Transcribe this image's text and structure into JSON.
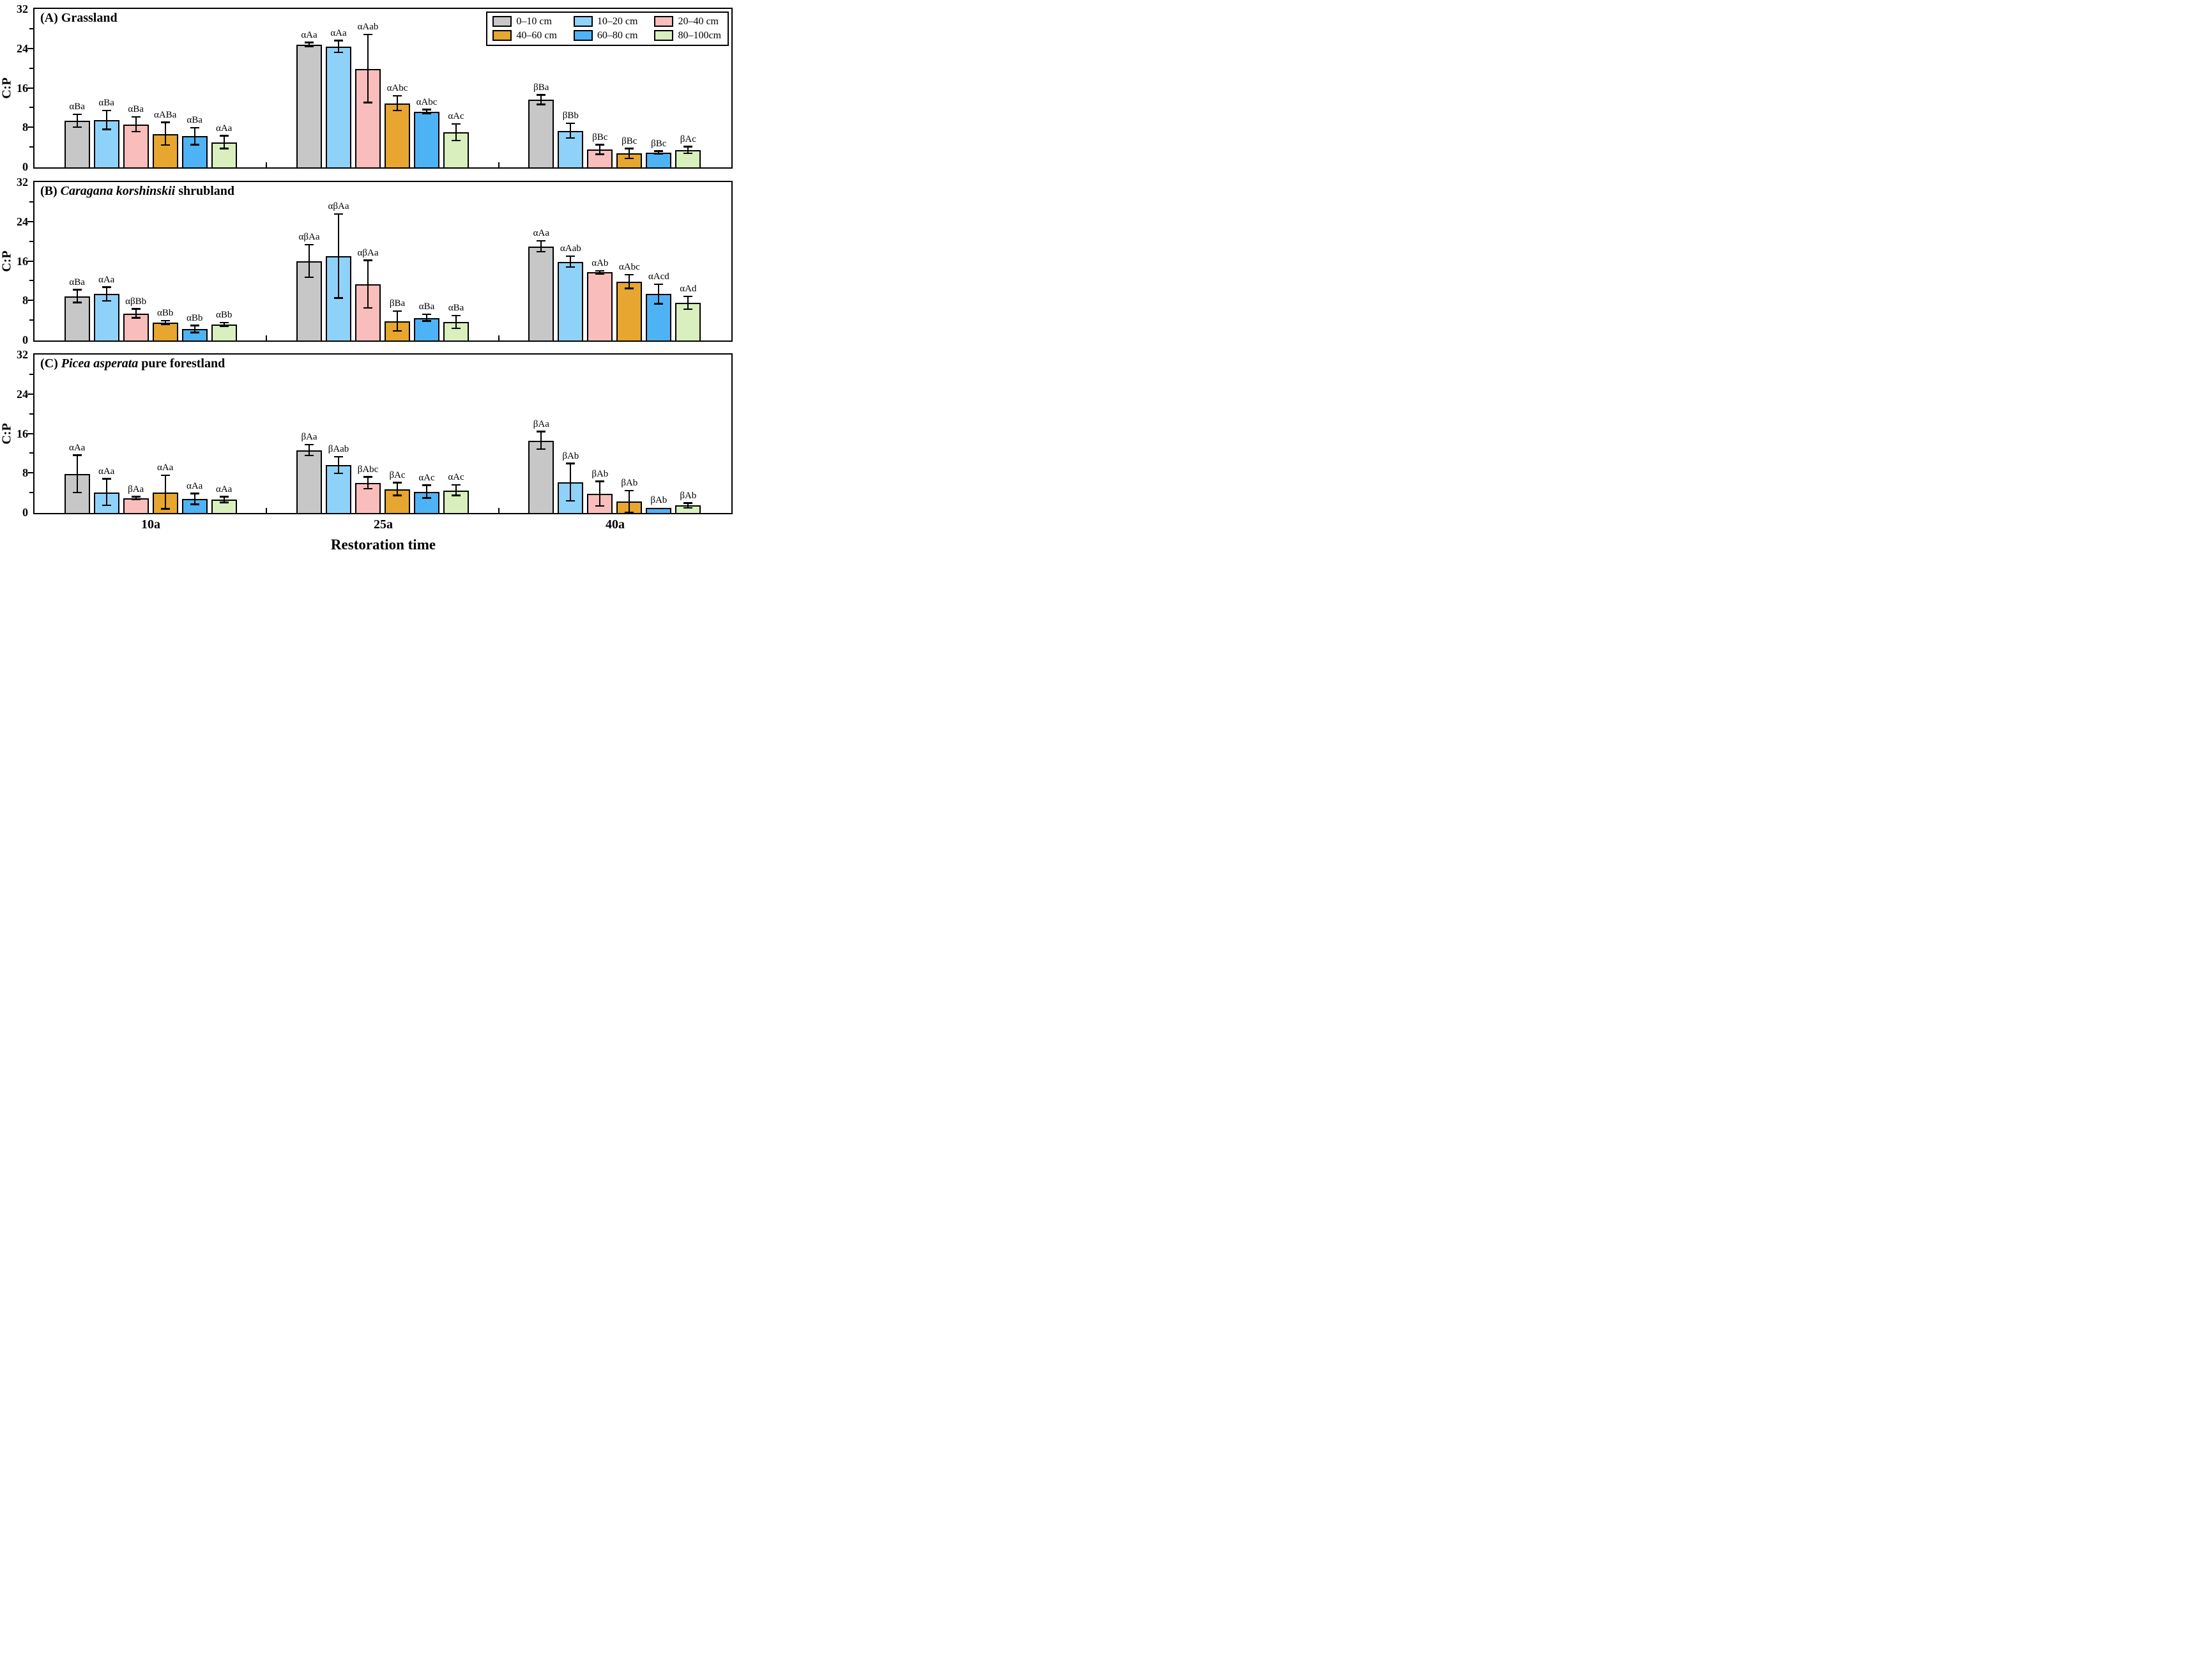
{
  "chart_data": {
    "type": "bar",
    "xlabel": "Restoration time",
    "ylabel": "C:P",
    "categories": [
      "10a",
      "25a",
      "40a"
    ],
    "ylim": [
      0,
      32
    ],
    "yticks": [
      0,
      8,
      16,
      24,
      32
    ],
    "yticks_minor": [
      4,
      12,
      20,
      28
    ],
    "grid": "off",
    "legend_position": "upper-right-panel-A",
    "error_bars": "plus-minus, capped",
    "panels": [
      {
        "id": "A",
        "title_parts": [
          {
            "text": "(A) Grassland",
            "italic": false
          }
        ],
        "series": [
          {
            "name": "0–10 cm",
            "color": "#C7C7C7",
            "values": [
              9.4,
              24.9,
              13.7
            ],
            "errors": [
              1.3,
              0.4,
              1.0
            ],
            "sig_labels": [
              "αBa",
              "αAa",
              "βBa"
            ]
          },
          {
            "name": "10–20 cm",
            "color": "#8FD2F9",
            "values": [
              9.6,
              24.5,
              7.4
            ],
            "errors": [
              1.9,
              1.2,
              1.5
            ],
            "sig_labels": [
              "αBa",
              "αAa",
              "βBb"
            ]
          },
          {
            "name": "20–40 cm",
            "color": "#F9BEBB",
            "values": [
              8.7,
              20.0,
              3.6
            ],
            "errors": [
              1.5,
              6.9,
              1.0
            ],
            "sig_labels": [
              "αBa",
              "αAab",
              "βBc"
            ]
          },
          {
            "name": "40–60 cm",
            "color": "#E7A62F",
            "values": [
              6.8,
              13.0,
              2.8
            ],
            "errors": [
              2.3,
              1.5,
              1.0
            ],
            "sig_labels": [
              "αABa",
              "αAbc",
              "βBc"
            ]
          },
          {
            "name": "60–80 cm",
            "color": "#4EB3F5",
            "values": [
              6.3,
              11.3,
              3.0
            ],
            "errors": [
              1.7,
              0.4,
              0.3
            ],
            "sig_labels": [
              "αBa",
              "αAbc",
              "βBc"
            ]
          },
          {
            "name": "80–100cm",
            "color": "#D9EFBE",
            "values": [
              5.1,
              7.1,
              3.5
            ],
            "errors": [
              1.3,
              1.7,
              0.7
            ],
            "sig_labels": [
              "αAa",
              "αAc",
              "βAc"
            ]
          }
        ]
      },
      {
        "id": "B",
        "title_parts": [
          {
            "text": "(B) ",
            "italic": false
          },
          {
            "text": "Caragana korshinskii",
            "italic": true
          },
          {
            "text": " shrubland",
            "italic": false
          }
        ],
        "series": [
          {
            "name": "0–10 cm",
            "color": "#C7C7C7",
            "values": [
              9.0,
              16.1,
              19.1
            ],
            "errors": [
              1.3,
              3.3,
              1.1
            ],
            "sig_labels": [
              "αBa",
              "αβAa",
              "αAa"
            ]
          },
          {
            "name": "10–20 cm",
            "color": "#8FD2F9",
            "values": [
              9.4,
              17.1,
              16.0
            ],
            "errors": [
              1.4,
              8.5,
              1.1
            ],
            "sig_labels": [
              "αAa",
              "αβAa",
              "αAab"
            ]
          },
          {
            "name": "20–40 cm",
            "color": "#F9BEBB",
            "values": [
              5.5,
              11.4,
              13.8
            ],
            "errors": [
              0.9,
              4.8,
              0.3
            ],
            "sig_labels": [
              "αβBb",
              "αβAa",
              "αAb"
            ]
          },
          {
            "name": "40–60 cm",
            "color": "#E7A62F",
            "values": [
              3.6,
              3.9,
              11.9
            ],
            "errors": [
              0.4,
              2.0,
              1.4
            ],
            "sig_labels": [
              "αBb",
              "βBa",
              "αAbc"
            ]
          },
          {
            "name": "60–80 cm",
            "color": "#4EB3F5",
            "values": [
              2.3,
              4.6,
              9.4
            ],
            "errors": [
              0.7,
              0.7,
              2.0
            ],
            "sig_labels": [
              "αBb",
              "αBa",
              "αAcd"
            ]
          },
          {
            "name": "80–100cm",
            "color": "#D9EFBE",
            "values": [
              3.2,
              3.7,
              7.6
            ],
            "errors": [
              0.4,
              1.3,
              1.3
            ],
            "sig_labels": [
              "αBb",
              "αBa",
              "αAd"
            ]
          }
        ]
      },
      {
        "id": "C",
        "title_parts": [
          {
            "text": "(C) ",
            "italic": false
          },
          {
            "text": "Picea asperata",
            "italic": true
          },
          {
            "text": " pure forestland",
            "italic": false
          }
        ],
        "series": [
          {
            "name": "0–10 cm",
            "color": "#C7C7C7",
            "values": [
              7.9,
              12.7,
              14.7
            ],
            "errors": [
              3.8,
              1.1,
              1.8
            ],
            "sig_labels": [
              "αAa",
              "βAa",
              "βAa"
            ]
          },
          {
            "name": "10–20 cm",
            "color": "#8FD2F9",
            "values": [
              4.2,
              9.7,
              6.2
            ],
            "errors": [
              2.7,
              1.7,
              3.8
            ],
            "sig_labels": [
              "αAa",
              "βAab",
              "βAb"
            ]
          },
          {
            "name": "20–40 cm",
            "color": "#F9BEBB",
            "values": [
              3.0,
              6.1,
              3.9
            ],
            "errors": [
              0.3,
              1.2,
              2.5
            ],
            "sig_labels": [
              "βAa",
              "βAbc",
              "βAb"
            ]
          },
          {
            "name": "40–60 cm",
            "color": "#E7A62F",
            "values": [
              4.2,
              4.8,
              2.3
            ],
            "errors": [
              3.4,
              1.3,
              2.2
            ],
            "sig_labels": [
              "αAa",
              "βAc",
              "βAb"
            ]
          },
          {
            "name": "60–80 cm",
            "color": "#4EB3F5",
            "values": [
              2.8,
              4.3,
              1.0
            ],
            "errors": [
              1.1,
              1.3,
              0.0
            ],
            "sig_labels": [
              "αAa",
              "αAc",
              "βAb"
            ]
          },
          {
            "name": "80–100cm",
            "color": "#D9EFBE",
            "values": [
              2.7,
              4.6,
              1.5
            ],
            "errors": [
              0.6,
              1.1,
              0.5
            ],
            "sig_labels": [
              "αAa",
              "αAc",
              "βAb"
            ]
          }
        ]
      }
    ]
  }
}
